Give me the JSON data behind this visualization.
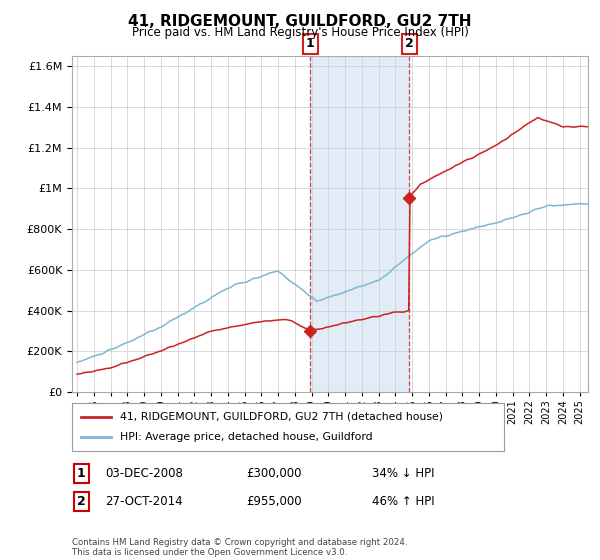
{
  "title": "41, RIDGEMOUNT, GUILDFORD, GU2 7TH",
  "subtitle": "Price paid vs. HM Land Registry's House Price Index (HPI)",
  "legend_line1": "41, RIDGEMOUNT, GUILDFORD, GU2 7TH (detached house)",
  "legend_line2": "HPI: Average price, detached house, Guildford",
  "sale1_label": "1",
  "sale1_date": "03-DEC-2008",
  "sale1_price": "£300,000",
  "sale1_hpi": "34% ↓ HPI",
  "sale1_year": 2008.92,
  "sale1_value": 300000,
  "sale2_label": "2",
  "sale2_date": "27-OCT-2014",
  "sale2_price": "£955,000",
  "sale2_hpi": "46% ↑ HPI",
  "sale2_year": 2014.83,
  "sale2_value": 955000,
  "hpi_color": "#7bb8d4",
  "price_color": "#cc2222",
  "shade_color": "#dce9f5",
  "ylim": [
    0,
    1650000
  ],
  "footer": "Contains HM Land Registry data © Crown copyright and database right 2024.\nThis data is licensed under the Open Government Licence v3.0."
}
